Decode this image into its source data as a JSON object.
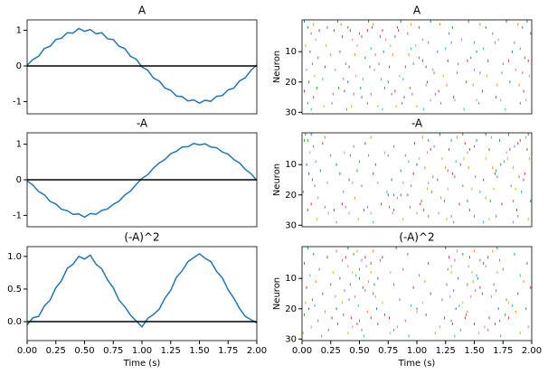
{
  "chart_data": [
    {
      "type": "line",
      "title": "A",
      "color": "#1f77b4",
      "hline": 0,
      "x": [
        0,
        0.05,
        0.1,
        0.15,
        0.2,
        0.25,
        0.3,
        0.35,
        0.4,
        0.45,
        0.5,
        0.55,
        0.6,
        0.65,
        0.7,
        0.75,
        0.8,
        0.85,
        0.9,
        0.95,
        1,
        1.05,
        1.1,
        1.15,
        1.2,
        1.25,
        1.3,
        1.35,
        1.4,
        1.45,
        1.5,
        1.55,
        1.6,
        1.65,
        1.7,
        1.75,
        1.8,
        1.85,
        1.9,
        1.95,
        2
      ],
      "values": [
        0.02,
        0.18,
        0.27,
        0.49,
        0.55,
        0.74,
        0.78,
        0.93,
        0.92,
        1.05,
        0.97,
        1.02,
        0.9,
        0.93,
        0.76,
        0.74,
        0.55,
        0.49,
        0.27,
        0.19,
        -0.03,
        -0.12,
        -0.34,
        -0.42,
        -0.62,
        -0.68,
        -0.84,
        -0.86,
        -0.98,
        -0.95,
        -1.04,
        -0.96,
        -0.99,
        -0.85,
        -0.83,
        -0.67,
        -0.62,
        -0.42,
        -0.33,
        -0.12,
        0.03
      ],
      "xlim": [
        0,
        2
      ],
      "ylim": [
        -1.34,
        1.29
      ],
      "yticks": [
        -1,
        0,
        1
      ]
    },
    {
      "type": "raster",
      "title": "A",
      "ylabel": "Neuron",
      "xlim": [
        0,
        2
      ],
      "ylim": [
        30.5,
        -0.5
      ],
      "yticks": [
        10,
        20,
        30
      ],
      "colors": [
        "#1f77b4",
        "#ff7f0e",
        "#2ca02c",
        "#d62728",
        "#9467bd",
        "#8c564b",
        "#e377c2",
        "#7f7f7f",
        "#bcbd22",
        "#17becf"
      ],
      "spikes": [
        [
          0.02,
          0.31,
          0.58,
          0.86,
          1.12,
          1.45,
          1.78,
          1.96
        ],
        [
          0.1,
          0.34,
          0.62,
          0.95,
          1.2,
          1.55,
          1.88
        ],
        [
          0.05,
          0.22,
          0.4,
          0.61,
          0.83,
          1.02,
          1.31,
          1.6,
          1.92
        ],
        [
          0.15,
          0.28,
          0.42,
          0.57,
          0.7,
          0.84
        ],
        [
          0.08,
          0.5,
          0.92,
          1.28,
          1.66,
          1.99
        ],
        [
          0.35,
          0.52,
          0.68,
          0.81
        ],
        [
          0.12,
          0.44,
          0.73,
          1.05,
          1.39,
          1.71
        ],
        [
          1.1,
          1.3,
          1.5,
          1.68,
          1.85
        ],
        [
          0.03,
          0.21,
          0.48,
          0.77,
          0.99
        ],
        [
          0.6,
          0.95,
          1.25,
          1.58,
          1.9
        ],
        [
          0.07,
          0.33,
          0.71,
          1.18,
          1.52,
          1.83
        ],
        [
          0.25,
          0.46,
          0.64,
          0.79,
          0.93
        ],
        [
          0.14,
          0.55,
          1.02,
          1.47,
          1.94
        ],
        [
          1.05,
          1.27,
          1.44,
          1.62,
          1.8,
          1.97
        ],
        [
          0.09,
          0.38,
          0.67,
          0.97,
          1.36,
          1.75
        ],
        [
          0.2,
          0.41,
          0.59,
          0.76,
          0.9,
          1.08
        ],
        [
          0.04,
          0.29,
          0.63,
          1.14,
          1.5,
          1.86
        ],
        [
          1.15,
          1.35,
          1.55,
          1.74,
          1.92
        ],
        [
          0.11,
          0.47,
          0.85,
          1.23,
          1.61,
          1.98
        ],
        [
          0.18,
          0.36,
          0.53,
          0.69,
          0.88
        ],
        [
          0.06,
          0.4,
          0.75,
          1.09,
          1.43,
          1.81
        ],
        [
          1.08,
          1.26,
          1.49,
          1.7,
          1.89
        ],
        [
          0.13,
          0.32,
          0.51,
          0.72,
          0.94
        ],
        [
          0.02,
          0.37,
          0.81,
          1.19,
          1.57,
          1.93
        ],
        [
          0.27,
          0.45,
          0.6,
          0.78,
          0.96,
          1.16
        ],
        [
          0.1,
          0.52,
          0.89,
          1.32,
          1.69
        ],
        [
          1.12,
          1.33,
          1.52,
          1.73,
          1.95
        ],
        [
          0.05,
          0.26,
          0.57,
          0.87,
          1.21,
          1.54,
          1.9
        ],
        [
          0.19,
          0.43,
          0.66,
          0.82,
          1.0
        ],
        [
          0.08,
          0.39,
          0.7,
          1.06,
          1.41,
          1.77
        ]
      ]
    },
    {
      "type": "line",
      "title": "-A",
      "color": "#1f77b4",
      "hline": 0,
      "x": [
        0,
        0.05,
        0.1,
        0.15,
        0.2,
        0.25,
        0.3,
        0.35,
        0.4,
        0.45,
        0.5,
        0.55,
        0.6,
        0.65,
        0.7,
        0.75,
        0.8,
        0.85,
        0.9,
        0.95,
        1,
        1.05,
        1.1,
        1.15,
        1.2,
        1.25,
        1.3,
        1.35,
        1.4,
        1.45,
        1.5,
        1.55,
        1.6,
        1.65,
        1.7,
        1.75,
        1.8,
        1.85,
        1.9,
        1.95,
        2
      ],
      "values": [
        -0.03,
        -0.15,
        -0.33,
        -0.42,
        -0.61,
        -0.68,
        -0.83,
        -0.87,
        -0.97,
        -0.96,
        -1.05,
        -0.95,
        -0.97,
        -0.86,
        -0.82,
        -0.69,
        -0.6,
        -0.43,
        -0.32,
        -0.13,
        0.04,
        0.14,
        0.33,
        0.47,
        0.57,
        0.73,
        0.8,
        0.92,
        0.93,
        1.02,
        0.98,
        1.01,
        0.92,
        0.9,
        0.78,
        0.72,
        0.57,
        0.47,
        0.29,
        0.17,
        -0.02
      ],
      "xlim": [
        0,
        2
      ],
      "ylim": [
        -1.32,
        1.32
      ],
      "yticks": [
        -1,
        0,
        1
      ]
    },
    {
      "type": "raster",
      "title": "-A",
      "ylabel": "Neuron",
      "xlim": [
        0,
        2
      ],
      "ylim": [
        30.5,
        -0.5
      ],
      "yticks": [
        10,
        20,
        30
      ],
      "colors": [
        "#1f77b4",
        "#ff7f0e",
        "#2ca02c",
        "#d62728",
        "#9467bd",
        "#8c564b",
        "#e377c2",
        "#7f7f7f",
        "#bcbd22",
        "#17becf"
      ],
      "spikes": [
        [
          0.03,
          0.08,
          1.2,
          1.4,
          1.6,
          1.8,
          1.97
        ],
        [
          0.2,
          0.6,
          1.05,
          1.35,
          1.65,
          1.95
        ],
        [
          0.02,
          0.05,
          1.1,
          1.3,
          1.52,
          1.72,
          1.9
        ],
        [
          0.18,
          0.55,
          0.98,
          1.42,
          1.88
        ],
        [
          0.1,
          0.45,
          0.8,
          1.15,
          1.5,
          1.85
        ],
        [
          1.12,
          1.28,
          1.46,
          1.63,
          1.81,
          1.96
        ],
        [
          0.07,
          0.37,
          0.72,
          1.09,
          1.44,
          1.78
        ],
        [
          0.25,
          0.42,
          0.58,
          0.75,
          0.9
        ],
        [
          1.02,
          1.22,
          1.41,
          1.6,
          1.79,
          1.98
        ],
        [
          0.12,
          0.5,
          0.93,
          1.34,
          1.76
        ],
        [
          0.04,
          0.3,
          0.64,
          1.0,
          1.38,
          1.73
        ],
        [
          1.07,
          1.25,
          1.45,
          1.66,
          1.84
        ],
        [
          0.16,
          0.48,
          0.86,
          1.27,
          1.69
        ],
        [
          0.06,
          0.33,
          0.62,
          0.97,
          1.31,
          1.68,
          1.94
        ],
        [
          1.14,
          1.33,
          1.51,
          1.7,
          1.89
        ],
        [
          0.09,
          0.41,
          0.78,
          1.18,
          1.58,
          1.93
        ],
        [
          0.22,
          0.44,
          0.66,
          0.88,
          1.1
        ],
        [
          0.11,
          0.52,
          0.95,
          1.4,
          1.82
        ],
        [
          1.09,
          1.27,
          1.48,
          1.67,
          1.86
        ],
        [
          0.01,
          0.36,
          0.74,
          1.13,
          1.55,
          1.91
        ],
        [
          0.75,
          0.8,
          0.86,
          0.92
        ],
        [
          0.14,
          0.46,
          0.83,
          1.21,
          1.6
        ],
        [
          1.04,
          1.24,
          1.44,
          1.64,
          1.84,
          1.99
        ],
        [
          0.08,
          0.35,
          0.69,
          1.03,
          1.37,
          1.74
        ],
        [
          0.2,
          0.38,
          0.57,
          0.76,
          0.94
        ],
        [
          0.05,
          0.28,
          0.54,
          0.8,
          1.06,
          1.46,
          1.87
        ],
        [
          0.23,
          0.41,
          0.6,
          0.79,
          1.0,
          1.19
        ],
        [
          1.1,
          1.3,
          1.5,
          1.69,
          1.88
        ],
        [
          0.13,
          0.49,
          0.88,
          1.26,
          1.63,
          1.97
        ],
        [
          0.3,
          0.62,
          1.32,
          1.58,
          1.84
        ]
      ]
    },
    {
      "type": "line",
      "title": "(-A)^2",
      "color": "#1f77b4",
      "hline": 0,
      "xlabel": "Time (s)",
      "x": [
        0,
        0.05,
        0.1,
        0.15,
        0.2,
        0.25,
        0.3,
        0.35,
        0.4,
        0.45,
        0.5,
        0.55,
        0.6,
        0.65,
        0.7,
        0.75,
        0.8,
        0.85,
        0.9,
        0.95,
        1,
        1.05,
        1.1,
        1.15,
        1.2,
        1.25,
        1.3,
        1.35,
        1.4,
        1.45,
        1.5,
        1.55,
        1.6,
        1.65,
        1.7,
        1.75,
        1.8,
        1.85,
        1.9,
        1.95,
        2
      ],
      "values": [
        -0.05,
        0.06,
        0.08,
        0.24,
        0.33,
        0.52,
        0.63,
        0.82,
        0.88,
        1.0,
        0.96,
        1.02,
        0.88,
        0.81,
        0.64,
        0.52,
        0.33,
        0.23,
        0.1,
        0.01,
        -0.08,
        0.05,
        0.11,
        0.19,
        0.36,
        0.48,
        0.68,
        0.78,
        0.92,
        0.98,
        1.04,
        0.97,
        0.92,
        0.77,
        0.67,
        0.49,
        0.36,
        0.2,
        0.08,
        0.03,
        -0.02
      ],
      "xlim": [
        0,
        2
      ],
      "ylim": [
        -0.29,
        1.15
      ],
      "yticks": [
        {
          "value": 0,
          "label": "0.0"
        },
        {
          "value": 0.5,
          "label": "0.5"
        },
        {
          "value": 1,
          "label": "1.0"
        }
      ],
      "xticks": [
        {
          "value": 0,
          "label": "0.00"
        },
        {
          "value": 0.25,
          "label": "0.25"
        },
        {
          "value": 0.5,
          "label": "0.50"
        },
        {
          "value": 0.75,
          "label": "0.75"
        },
        {
          "value": 1,
          "label": "1.00"
        },
        {
          "value": 1.25,
          "label": "1.25"
        },
        {
          "value": 1.5,
          "label": "1.50"
        },
        {
          "value": 1.75,
          "label": "1.75"
        },
        {
          "value": 2,
          "label": "2.00"
        }
      ]
    },
    {
      "type": "raster",
      "title": "(-A)^2",
      "ylabel": "Neuron",
      "xlabel": "Time (s)",
      "xlim": [
        0,
        2
      ],
      "ylim": [
        30.5,
        -0.5
      ],
      "yticks": [
        10,
        20,
        30
      ],
      "xticks": [
        {
          "value": 0,
          "label": "0.00"
        },
        {
          "value": 0.25,
          "label": "0.25"
        },
        {
          "value": 0.5,
          "label": "0.50"
        },
        {
          "value": 0.75,
          "label": "0.75"
        },
        {
          "value": 1,
          "label": "1.00"
        },
        {
          "value": 1.25,
          "label": "1.25"
        },
        {
          "value": 1.5,
          "label": "1.50"
        },
        {
          "value": 1.75,
          "label": "1.75"
        },
        {
          "value": 2,
          "label": "2.00"
        }
      ],
      "colors": [
        "#1f77b4",
        "#ff7f0e",
        "#2ca02c",
        "#d62728",
        "#9467bd",
        "#8c564b",
        "#e377c2",
        "#7f7f7f",
        "#bcbd22",
        "#17becf"
      ],
      "spikes": [
        [
          0.05,
          0.4,
          0.82,
          1.25,
          1.7
        ],
        [
          0.3,
          0.48,
          0.62,
          1.35,
          1.5,
          1.66
        ],
        [
          0.1,
          0.45,
          0.92,
          1.4,
          1.85
        ],
        [
          0.22,
          0.38,
          0.55,
          0.7,
          1.28,
          1.46,
          1.62
        ],
        [
          0.35,
          0.52,
          0.68,
          1.33,
          1.55,
          1.72
        ],
        [
          0.02,
          0.6,
          1.1,
          1.58,
          1.96
        ],
        [
          0.4,
          0.56,
          1.3,
          1.45,
          1.6
        ],
        [
          0.15,
          0.5,
          0.88,
          1.27,
          1.75
        ],
        [
          0.27,
          0.44,
          0.6,
          0.77,
          1.3,
          1.48,
          1.7
        ],
        [
          0.07,
          0.47,
          1.02,
          1.52,
          1.9
        ],
        [
          0.33,
          0.5,
          0.66,
          1.36,
          1.53
        ],
        [
          0.12,
          0.58,
          1.07,
          1.49,
          1.93
        ],
        [
          0.25,
          0.42,
          0.63,
          0.8,
          1.26,
          1.44,
          1.67
        ],
        [
          0.04,
          0.53,
          0.97,
          1.55,
          1.99
        ],
        [
          0.37,
          0.55,
          1.32,
          1.51,
          1.69
        ],
        [
          0.18,
          0.62,
          1.12,
          1.57,
          1.88
        ],
        [
          0.29,
          0.46,
          0.64,
          1.29,
          1.47,
          1.65
        ],
        [
          0.09,
          0.41,
          0.85,
          1.22,
          1.78
        ],
        [
          0.03,
          0.35,
          0.7,
          1.05,
          1.4,
          1.8
        ],
        [
          0.11,
          0.49,
          0.95,
          1.37,
          1.83
        ],
        [
          0.06,
          0.3,
          0.65,
          1.0,
          1.34,
          1.71,
          1.95
        ],
        [
          0.2,
          0.57,
          1.0,
          1.44,
          1.86
        ],
        [
          0.02,
          0.36,
          0.72,
          1.08,
          1.43,
          1.77
        ],
        [
          0.26,
          0.43,
          0.6,
          0.76,
          1.24,
          1.42,
          1.63,
          1.8
        ],
        [
          0.14,
          0.5,
          0.9,
          1.3,
          1.72
        ],
        [
          0.31,
          0.48,
          0.66,
          1.31,
          1.5,
          1.68
        ],
        [
          0.08,
          0.44,
          0.83,
          1.2,
          1.59,
          1.97
        ],
        [
          0.23,
          0.52,
          0.8,
          1.38,
          1.62
        ],
        [
          0.01,
          0.4,
          0.77,
          1.16,
          1.54,
          1.9
        ],
        [
          0.17,
          0.54,
          0.93,
          1.33,
          1.73
        ]
      ]
    }
  ]
}
